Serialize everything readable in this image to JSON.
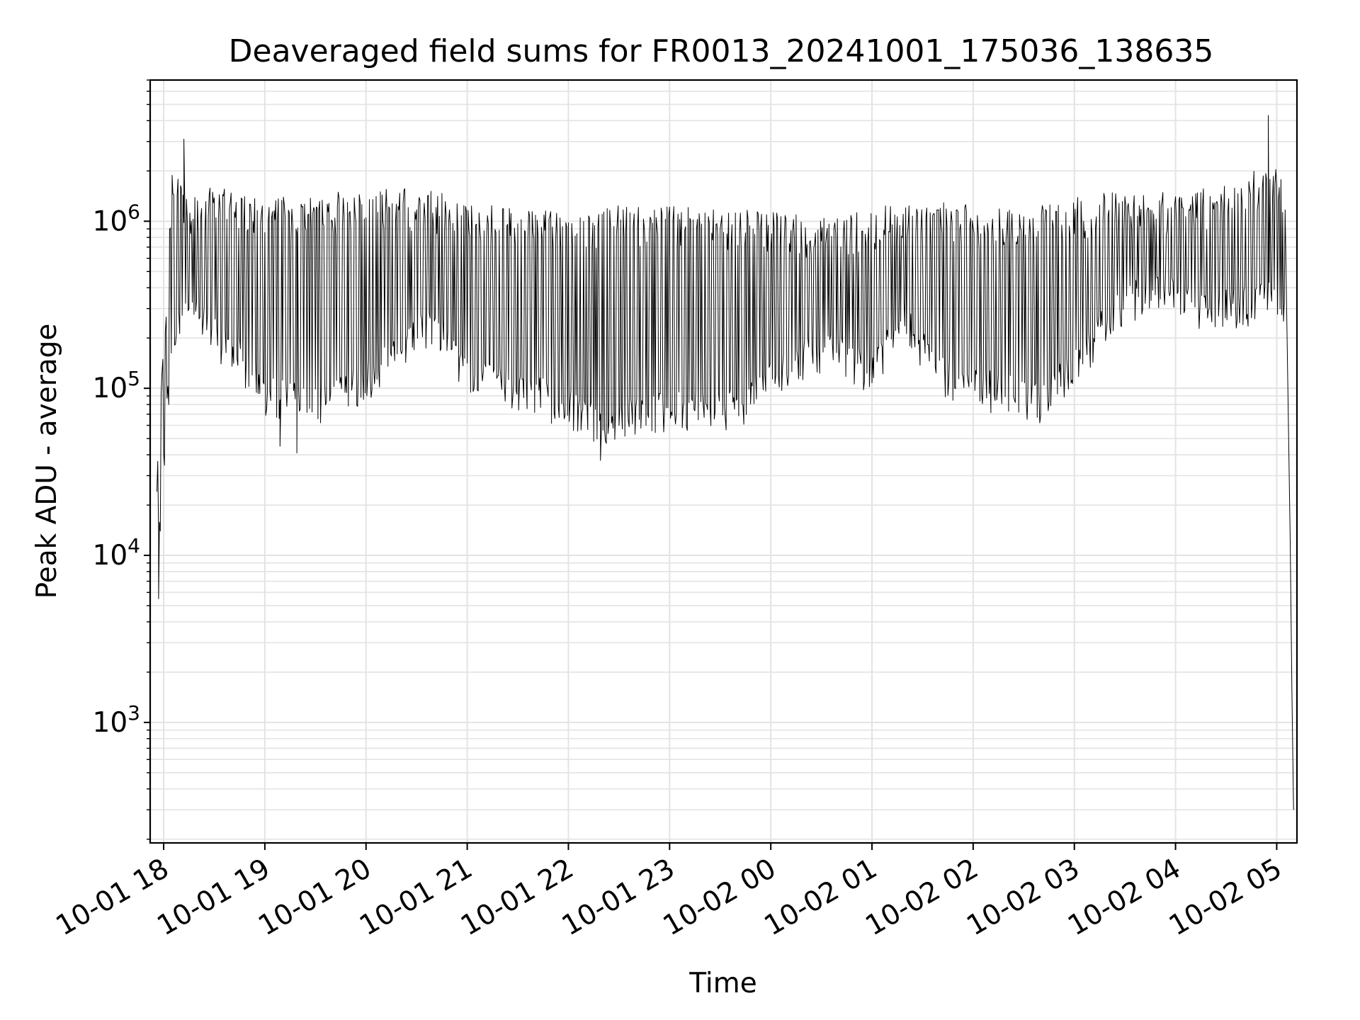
{
  "chart_data": {
    "type": "line",
    "title": "Deaveraged field sums for FR0013_20241001_175036_138635",
    "xlabel": "Time",
    "ylabel": "Peak ADU - average",
    "x_scale": "time",
    "y_scale": "log",
    "xlim": [
      "2024-10-01 17:52",
      "2024-10-02 05:12"
    ],
    "ylim": [
      190,
      7000000
    ],
    "grid": true,
    "grid_minor": true,
    "x_ticks": [
      "10-01 18",
      "10-01 19",
      "10-01 20",
      "10-01 21",
      "10-01 22",
      "10-01 23",
      "10-02 00",
      "10-02 01",
      "10-02 02",
      "10-02 03",
      "10-02 04",
      "10-02 05"
    ],
    "x_tick_times": [
      "2024-10-01 18:00",
      "2024-10-01 19:00",
      "2024-10-01 20:00",
      "2024-10-01 21:00",
      "2024-10-01 22:00",
      "2024-10-01 23:00",
      "2024-10-02 00:00",
      "2024-10-02 01:00",
      "2024-10-02 02:00",
      "2024-10-02 03:00",
      "2024-10-02 04:00",
      "2024-10-02 05:00"
    ],
    "y_ticks": [
      {
        "value": 1000,
        "base": "10",
        "exp": "3"
      },
      {
        "value": 10000,
        "base": "10",
        "exp": "4"
      },
      {
        "value": 100000,
        "base": "10",
        "exp": "5"
      },
      {
        "value": 1000000,
        "base": "10",
        "exp": "6"
      }
    ],
    "series": [
      {
        "color": "#000000",
        "line_width": 1,
        "envelope": {
          "time": [
            "2024-10-01 17:56",
            "2024-10-01 18:05",
            "2024-10-01 18:15",
            "2024-10-01 18:30",
            "2024-10-01 18:45",
            "2024-10-01 19:00",
            "2024-10-01 19:20",
            "2024-10-01 19:40",
            "2024-10-01 20:00",
            "2024-10-01 20:20",
            "2024-10-01 20:40",
            "2024-10-01 21:00",
            "2024-10-01 21:20",
            "2024-10-01 21:40",
            "2024-10-01 22:00",
            "2024-10-01 22:20",
            "2024-10-01 22:40",
            "2024-10-01 23:00",
            "2024-10-01 23:20",
            "2024-10-01 23:40",
            "2024-10-02 00:00",
            "2024-10-02 00:20",
            "2024-10-02 00:40",
            "2024-10-02 01:00",
            "2024-10-02 01:20",
            "2024-10-02 01:40",
            "2024-10-02 02:00",
            "2024-10-02 02:20",
            "2024-10-02 02:40",
            "2024-10-02 03:00",
            "2024-10-02 03:20",
            "2024-10-02 03:40",
            "2024-10-02 04:00",
            "2024-10-02 04:20",
            "2024-10-02 04:40",
            "2024-10-02 05:00",
            "2024-10-02 05:05"
          ],
          "low": [
            8000,
            200000,
            300000,
            200000,
            150000,
            90000,
            80000,
            80000,
            110000,
            160000,
            250000,
            110000,
            100000,
            90000,
            75000,
            60000,
            70000,
            70000,
            75000,
            75000,
            110000,
            150000,
            160000,
            120000,
            250000,
            120000,
            100000,
            90000,
            80000,
            130000,
            250000,
            350000,
            350000,
            280000,
            300000,
            350000,
            300000
          ],
          "high": [
            35000,
            2000000,
            1500000,
            1600000,
            1500000,
            1400000,
            1400000,
            1500000,
            1550000,
            1600000,
            1550000,
            1300000,
            1250000,
            1200000,
            1200000,
            1250000,
            1250000,
            1250000,
            1200000,
            1200000,
            1150000,
            1100000,
            1100000,
            1200000,
            1300000,
            1300000,
            1250000,
            1200000,
            1300000,
            1400000,
            1500000,
            1500000,
            1500000,
            1600000,
            2000000,
            2300000,
            1500000
          ]
        },
        "noted_points": [
          {
            "time": "2024-10-01 17:57",
            "value": 5500
          },
          {
            "time": "2024-10-01 18:12",
            "value": 3100000
          },
          {
            "time": "2024-10-01 19:09",
            "value": 45000
          },
          {
            "time": "2024-10-01 19:19",
            "value": 41000
          },
          {
            "time": "2024-10-01 22:19",
            "value": 37000
          },
          {
            "time": "2024-10-02 04:55",
            "value": 4300000
          },
          {
            "time": "2024-10-02 05:10",
            "value": 300
          }
        ]
      }
    ]
  }
}
